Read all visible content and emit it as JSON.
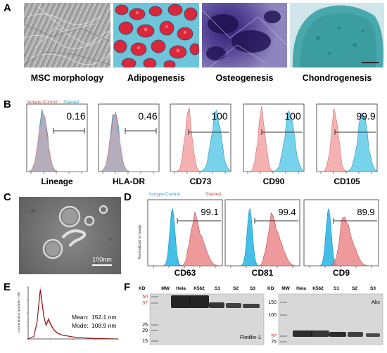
{
  "panels": {
    "a": "A",
    "b": "B",
    "c": "C",
    "d": "D",
    "e": "E",
    "f": "F"
  },
  "panel_a": {
    "captions": [
      "MSC morphology",
      "Adipogenesis",
      "Osteogenesis",
      "Chondrogenesis"
    ]
  },
  "panel_b": {
    "legend": {
      "isotype": "Isotype Control",
      "stained": "Stained"
    },
    "plots": [
      {
        "marker": "Lineage",
        "percent": "0.16",
        "stained": false
      },
      {
        "marker": "HLA-DR",
        "percent": "0.46",
        "stained": false
      },
      {
        "marker": "CD73",
        "percent": "100",
        "stained": true
      },
      {
        "marker": "CD90",
        "percent": "100",
        "stained": true
      },
      {
        "marker": "CD105",
        "percent": "99.9",
        "stained": true
      }
    ],
    "colors": {
      "isotype": "#f4a4a4",
      "stained": "#5fcbe8"
    }
  },
  "panel_c": {
    "scale_bar": "100nm"
  },
  "panel_d": {
    "legend": {
      "isotype": "Isotype Control",
      "stained": "Stained"
    },
    "ylabel": "Normalized to mode",
    "plots": [
      {
        "marker": "CD63",
        "percent": "99.1"
      },
      {
        "marker": "CD81",
        "percent": "99.4"
      },
      {
        "marker": "CD9",
        "percent": "89.9"
      }
    ],
    "colors": {
      "isotype": "#2fb8e6",
      "stained": "#e8787c"
    }
  },
  "panel_e": {
    "ylabel": "Concentration (particles / ml)",
    "mean_label": "Mean:",
    "mean_value": "152.1 nm",
    "mode_label": "Mode:",
    "mode_value": "108.9 nm"
  },
  "panel_f": {
    "blots": [
      {
        "kd_header": "KD",
        "lanes": [
          "MW",
          "Hela",
          "K562",
          "S1",
          "S2",
          "S3"
        ],
        "kd_marks": [
          "50",
          "37",
          "25",
          "20",
          "15"
        ],
        "highlight_marks": [
          "50",
          "37"
        ],
        "protein": "Flotillin-1"
      },
      {
        "kd_header": "KD",
        "lanes": [
          "MW",
          "Hela",
          "K562",
          "S1",
          "S2",
          "S3"
        ],
        "kd_marks": [
          "150",
          "100",
          "97",
          "75"
        ],
        "highlight_marks": [
          "97"
        ],
        "protein": "Alix"
      }
    ]
  },
  "chart_data": [
    {
      "type": "bar",
      "panel": "B",
      "categories": [
        "Lineage",
        "HLA-DR",
        "CD73",
        "CD90",
        "CD105"
      ],
      "values": [
        0.16,
        0.46,
        100,
        100,
        99.9
      ],
      "series_labels": [
        "Isotype Control",
        "Stained"
      ],
      "ylim": [
        0,
        100
      ]
    },
    {
      "type": "bar",
      "panel": "D",
      "categories": [
        "CD63",
        "CD81",
        "CD9"
      ],
      "values": [
        99.1,
        99.4,
        89.9
      ],
      "series_labels": [
        "Isotype Control",
        "Stained"
      ],
      "ylabel": "Normalized to mode",
      "ylim": [
        0,
        100
      ]
    },
    {
      "type": "line",
      "panel": "E",
      "ylabel": "Concentration (particles / ml)",
      "x": [
        0,
        50,
        80,
        100,
        109,
        120,
        140,
        160,
        180,
        200,
        230,
        260,
        300,
        350,
        400,
        450,
        500,
        600,
        700,
        800
      ],
      "y": [
        0,
        0.05,
        0.35,
        0.85,
        1.0,
        0.8,
        0.45,
        0.28,
        0.4,
        0.3,
        0.18,
        0.12,
        0.08,
        0.06,
        0.04,
        0.03,
        0.02,
        0.01,
        0.005,
        0
      ],
      "mean": 152.1,
      "mode": 108.9
    }
  ]
}
